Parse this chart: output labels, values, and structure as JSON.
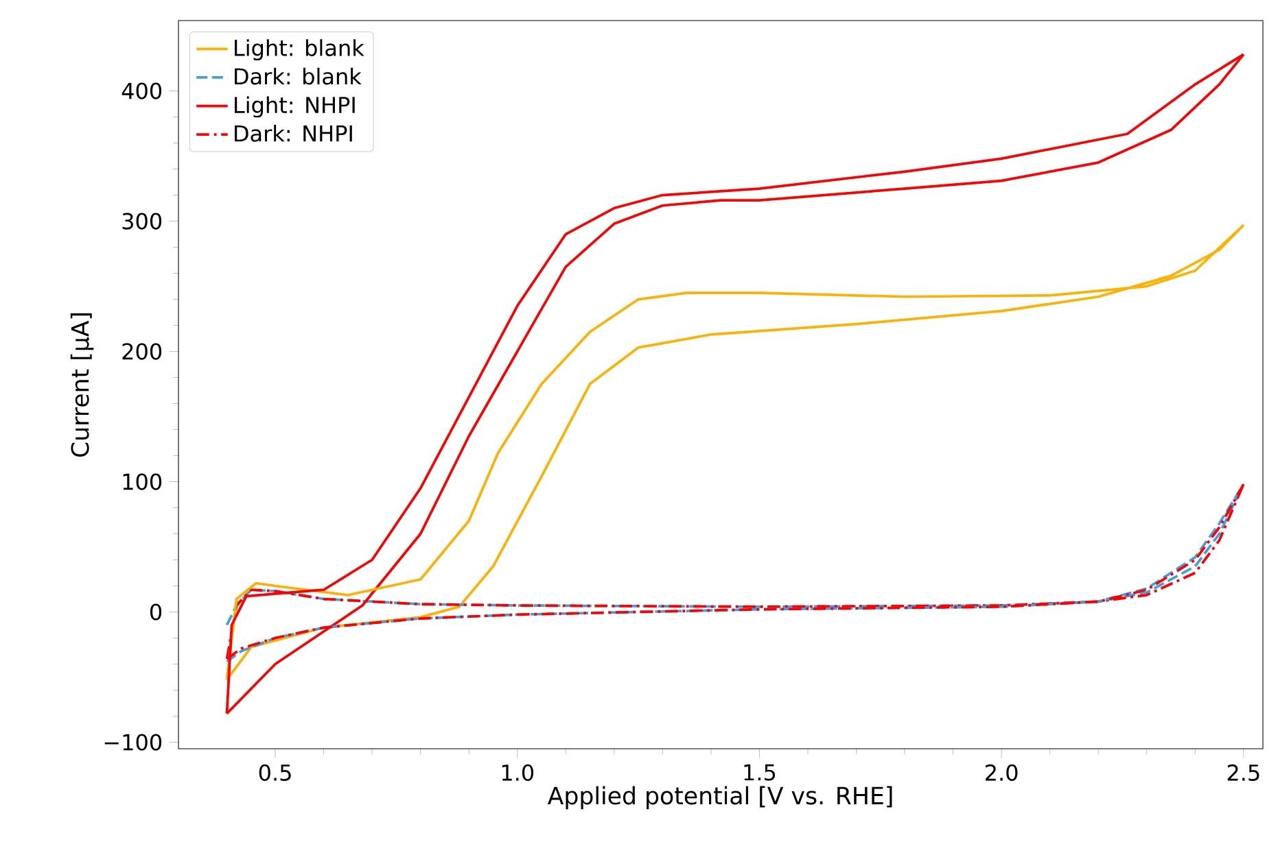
{
  "chart_data": {
    "type": "line",
    "xlabel": "Applied potential [V vs. RHE]",
    "ylabel": "Current [µA]",
    "xlim": [
      0.3,
      2.54
    ],
    "ylim": [
      -105,
      454
    ],
    "xticks": [
      {
        "value": 0.5,
        "label": "0.5"
      },
      {
        "value": 1.0,
        "label": "1.0"
      },
      {
        "value": 1.5,
        "label": "1.5"
      },
      {
        "value": 2.0,
        "label": "2.0"
      },
      {
        "value": 2.5,
        "label": "2.5"
      }
    ],
    "yticks": [
      {
        "value": -100,
        "label": "−100"
      },
      0,
      100,
      200,
      300,
      400
    ],
    "grid": false,
    "legend": "top left",
    "marker": "none",
    "series": [
      {
        "name": "Light: blank",
        "color": "#ffb000",
        "line_style": "solid",
        "x": [
          0.4,
          0.45,
          0.6,
          0.8,
          0.88,
          0.95,
          1.05,
          1.15,
          1.25,
          1.4,
          1.7,
          2.0,
          2.2,
          2.35,
          2.45,
          2.5
        ],
        "values": [
          -52,
          -27,
          -12,
          -4,
          4,
          35,
          104,
          175,
          203,
          213,
          221,
          231,
          242,
          258,
          278,
          297
        ]
      },
      {
        "name": "Dark: blank",
        "color": "#3ea0e8",
        "line_style": "dashed",
        "x": [
          0.4,
          0.42,
          0.45,
          0.5,
          0.6,
          0.8,
          1.0,
          1.5,
          2.0,
          2.2,
          2.3,
          2.4,
          2.45,
          2.5
        ],
        "values": [
          -10,
          5,
          17,
          16,
          10,
          6,
          5,
          4,
          5,
          8,
          15,
          35,
          60,
          98
        ]
      },
      {
        "name": "Light: NHPI",
        "color": "#ff0000",
        "line_style": "solid",
        "x": [
          0.4,
          0.5,
          0.6,
          0.68,
          0.8,
          0.9,
          1.0,
          1.1,
          1.2,
          1.3,
          1.42,
          1.5,
          1.8,
          2.0,
          2.2,
          2.35,
          2.45,
          2.5
        ],
        "values": [
          -78,
          -40,
          -15,
          5,
          60,
          135,
          200,
          265,
          298,
          312,
          316,
          316,
          325,
          331,
          345,
          370,
          405,
          428
        ]
      },
      {
        "name": "Dark: NHPI",
        "color": "#ff0000",
        "line_style": "dashdot",
        "x": [
          0.4,
          0.42,
          0.45,
          0.5,
          0.6,
          0.8,
          1.0,
          1.5,
          2.0,
          2.2,
          2.3,
          2.4,
          2.45,
          2.5
        ],
        "values": [
          -36,
          5,
          17,
          16,
          10,
          6,
          5,
          4,
          5,
          8,
          13,
          30,
          55,
          98
        ]
      },
      {
        "color": "#ffb000",
        "line_style": "solid",
        "x": [
          0.4,
          0.42,
          0.46,
          0.5,
          0.65,
          0.8,
          0.9,
          0.96,
          1.05,
          1.15,
          1.25,
          1.35,
          1.5,
          1.8,
          2.1,
          2.3,
          2.4,
          2.5
        ],
        "values": [
          -52,
          10,
          22,
          20,
          13,
          25,
          70,
          122,
          175,
          215,
          240,
          245,
          245,
          242,
          243,
          250,
          262,
          297
        ]
      },
      {
        "color": "#3ea0e8",
        "line_style": "dashed",
        "x": [
          0.4,
          0.43,
          0.5,
          0.6,
          0.8,
          1.0,
          1.5,
          2.0,
          2.2,
          2.3,
          2.4,
          2.45,
          2.5
        ],
        "values": [
          -38,
          -30,
          -20,
          -12,
          -5,
          -2,
          2,
          4,
          8,
          18,
          42,
          68,
          98
        ]
      },
      {
        "color": "#ff0000",
        "line_style": "solid",
        "x": [
          0.4,
          0.41,
          0.44,
          0.5,
          0.6,
          0.7,
          0.8,
          0.9,
          1.0,
          1.1,
          1.2,
          1.3,
          1.5,
          1.8,
          2.0,
          2.26,
          2.4,
          2.5
        ],
        "values": [
          -78,
          -10,
          12,
          14,
          17,
          40,
          95,
          165,
          235,
          290,
          310,
          320,
          325,
          338,
          348,
          367,
          405,
          428
        ]
      },
      {
        "color": "#ff0000",
        "line_style": "dashdot",
        "x": [
          0.4,
          0.43,
          0.5,
          0.6,
          0.8,
          1.0,
          1.5,
          2.0,
          2.2,
          2.3,
          2.4,
          2.45,
          2.5
        ],
        "values": [
          -36,
          -28,
          -20,
          -12,
          -5,
          -2,
          2,
          4,
          8,
          17,
          40,
          65,
          98
        ]
      }
    ]
  }
}
